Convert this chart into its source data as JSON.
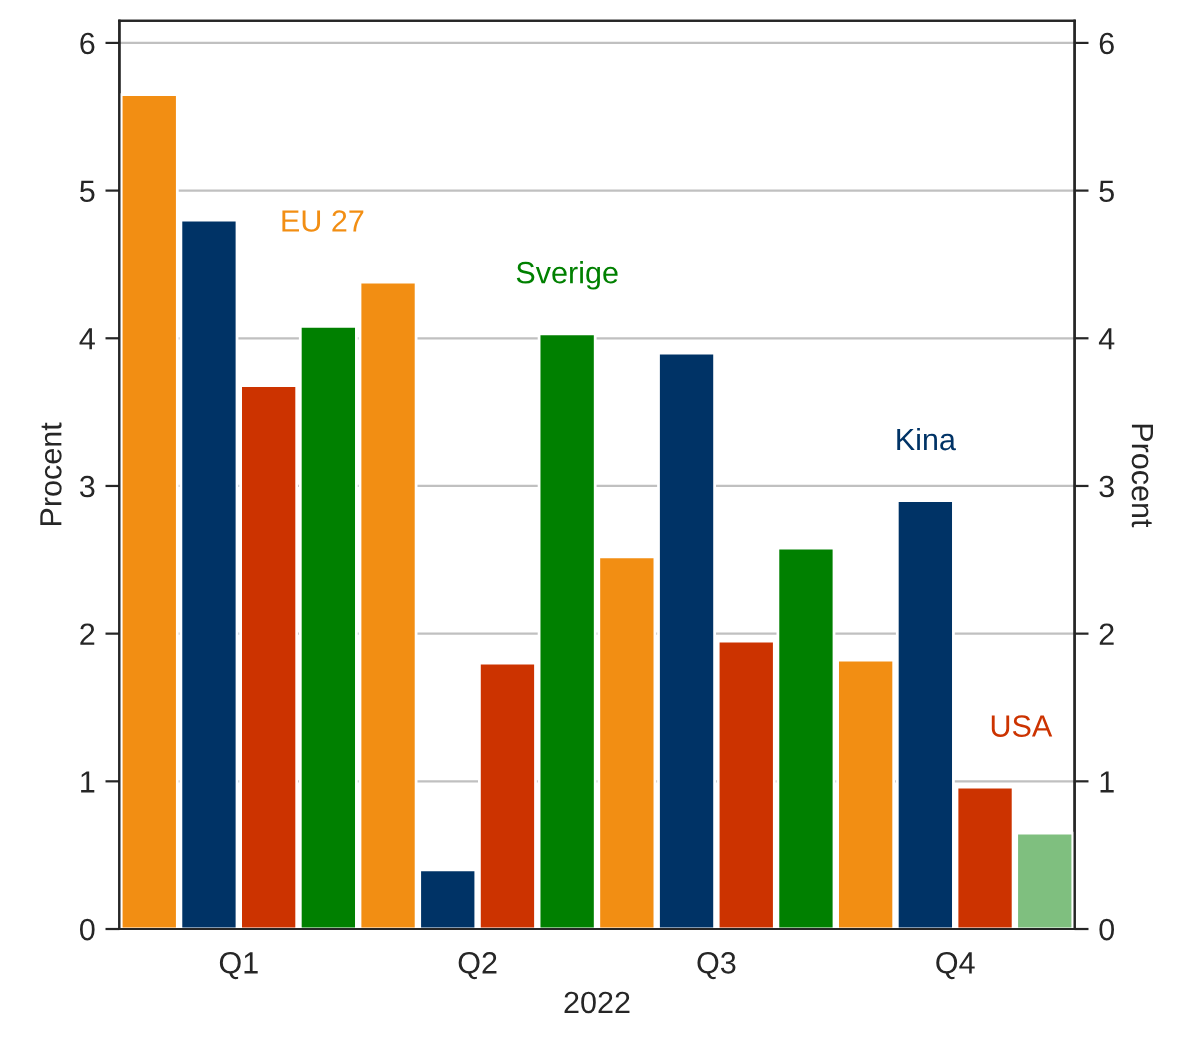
{
  "chart_data": {
    "type": "bar",
    "xlabel": "2022",
    "ylabel": "Procent",
    "y2label": "Procent",
    "categories": [
      "Q1",
      "Q2",
      "Q3",
      "Q4"
    ],
    "series": [
      {
        "name": "EU 27",
        "color": "#f28e13",
        "values": [
          5.65,
          4.38,
          2.52,
          1.82
        ]
      },
      {
        "name": "Kina",
        "color": "#003366",
        "values": [
          4.8,
          0.4,
          3.9,
          2.9
        ]
      },
      {
        "name": "USA",
        "color": "#cc3300",
        "values": [
          3.68,
          1.8,
          1.95,
          0.96
        ]
      },
      {
        "name": "Sverige",
        "color": "#008000",
        "colors": [
          "#008000",
          "#008000",
          "#008000",
          "#7fbf7f"
        ],
        "values": [
          4.08,
          4.03,
          2.58,
          0.65
        ]
      }
    ],
    "ylim": [
      0,
      6.15
    ],
    "yticks": [
      0,
      1,
      2,
      3,
      4,
      5,
      6
    ],
    "y2lim": [
      0,
      6.15
    ],
    "y2ticks": [
      0,
      1,
      2,
      3,
      4,
      5,
      6
    ],
    "grid": "y",
    "legend": false
  }
}
